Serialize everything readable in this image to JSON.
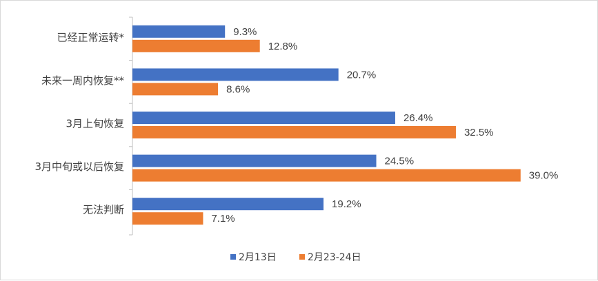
{
  "chart_data": {
    "type": "bar",
    "orientation": "horizontal",
    "title": "",
    "xlabel": "",
    "ylabel": "",
    "categories": [
      "已经正常运转*",
      "未来一周内恢复**",
      "3月上旬恢复",
      "3月中旬或以后恢复",
      "无法判断"
    ],
    "series": [
      {
        "name": "2月13日",
        "color": "#4472c4",
        "values": [
          9.3,
          20.7,
          26.4,
          24.5,
          19.2
        ],
        "labels": [
          "9.3%",
          "20.7%",
          "26.4%",
          "24.5%",
          "19.2%"
        ]
      },
      {
        "name": "2月23-24日",
        "color": "#ed7d31",
        "values": [
          12.8,
          8.6,
          32.5,
          39.0,
          7.1
        ],
        "labels": [
          "12.8%",
          "8.6%",
          "32.5%",
          "39.0%",
          "7.1%"
        ]
      }
    ],
    "xlim": [
      0,
      45
    ],
    "grid": false,
    "legend": "bottom-center"
  }
}
